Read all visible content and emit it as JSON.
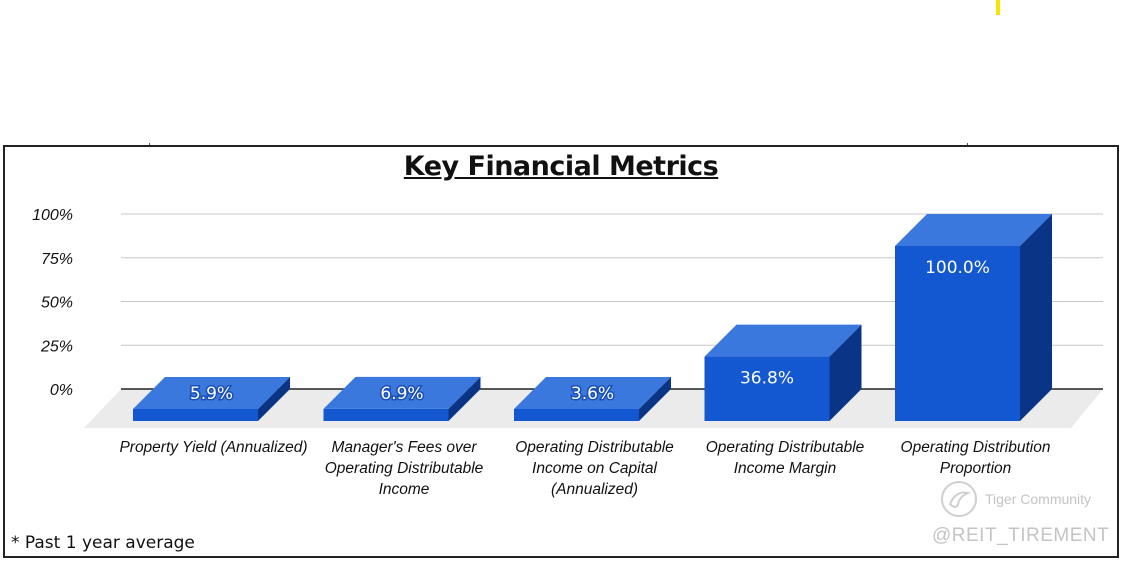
{
  "chart_data": {
    "type": "bar",
    "title": "Key Financial Metrics",
    "categories": [
      [
        "Property Yield (Annualized)"
      ],
      [
        "Manager's Fees over",
        "Operating Distributable",
        "Income"
      ],
      [
        "Operating Distributable",
        "Income on Capital",
        "(Annualized)"
      ],
      [
        "Operating Distributable",
        "Income Margin"
      ],
      [
        "Operating Distribution",
        "Proportion"
      ]
    ],
    "values": [
      5.9,
      6.9,
      3.6,
      36.8,
      100.0
    ],
    "data_labels": [
      "5.9%",
      "6.9%",
      "3.6%",
      "36.8%",
      "100.0%"
    ],
    "y_ticks": [
      "0%",
      "25%",
      "50%",
      "75%",
      "100%"
    ],
    "ylim": [
      0,
      100
    ],
    "grid": true,
    "style": "3d-column",
    "colors": {
      "front": "#1357d1",
      "top": "#3a78dd",
      "side": "#0a3587",
      "floor": "#ebebeb"
    }
  },
  "footnote": "* Past 1 year average",
  "watermark": {
    "brand": "Tiger Community",
    "handle": "@REIT_TIREMENT"
  }
}
